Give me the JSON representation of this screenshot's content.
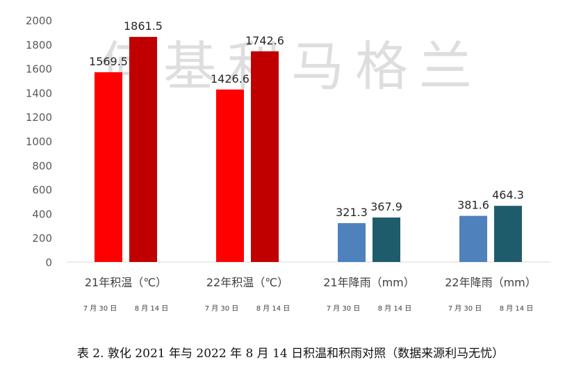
{
  "chart_data": {
    "type": "bar",
    "categories": [
      "21年积温（℃）",
      "22年积温（℃）",
      "21年降雨（mm）",
      "22年降雨（mm）"
    ],
    "sub_labels": [
      "7 月 30 日",
      "8 月 14 日"
    ],
    "values": [
      [
        1569.5,
        1861.5
      ],
      [
        1426.6,
        1742.6
      ],
      [
        321.3,
        367.9
      ],
      [
        381.6,
        464.3
      ]
    ],
    "value_labels": [
      [
        "1569.5",
        "1861.5"
      ],
      [
        "1426.6",
        "1742.6"
      ],
      [
        "321.3",
        "367.9"
      ],
      [
        "381.6",
        "464.3"
      ]
    ],
    "bar_colors": [
      [
        "#ff0000",
        "#c00000"
      ],
      [
        "#ff0000",
        "#c00000"
      ],
      [
        "#4f81bd",
        "#1f5c6b"
      ],
      [
        "#4f81bd",
        "#1f5c6b"
      ]
    ],
    "ylim": [
      0,
      2000
    ],
    "yticks": [
      "0",
      "200",
      "400",
      "600",
      "800",
      "1000",
      "1200",
      "1400",
      "1600",
      "1800",
      "2000"
    ],
    "grid": false
  },
  "watermark": "何基利马格兰",
  "caption": "表 2. 敦化 2021 年与 2022 年 8 月 14 日积温和积雨对照（数据来源利马无忧）"
}
